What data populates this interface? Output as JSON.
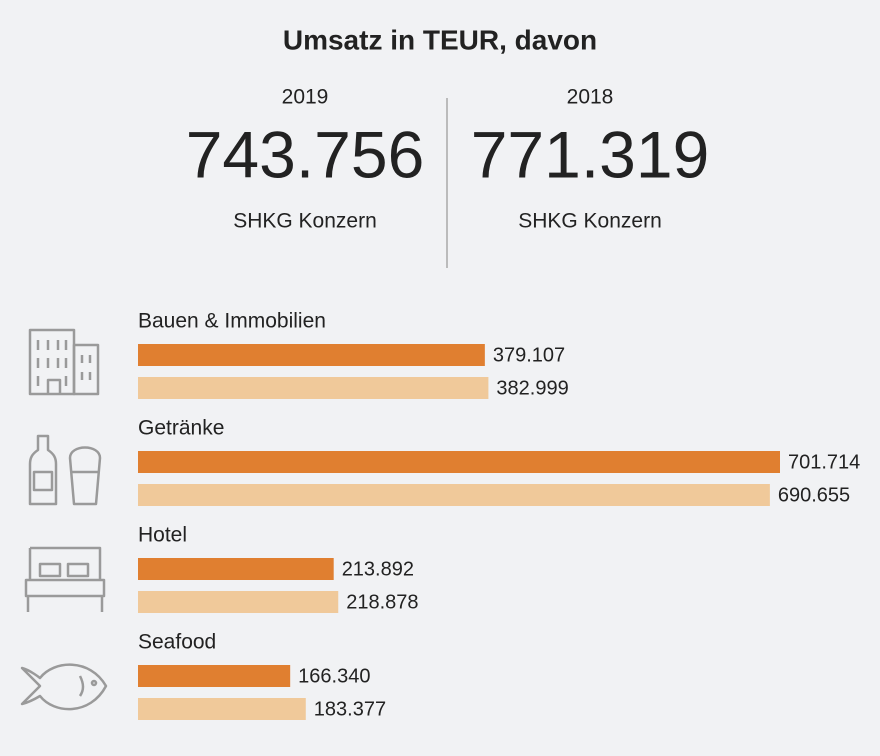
{
  "chart_data": {
    "type": "hbar",
    "title": "Umsatz in TEUR, davon",
    "categories": [
      "Bauen & Immobilien",
      "Getränke",
      "Hotel",
      "Seafood"
    ],
    "series": [
      {
        "name": "2019",
        "color": "#e07f30",
        "total": 743756,
        "total_label": "743.756",
        "caption": "SHKG Konzern",
        "values": [
          379107,
          701714,
          213892,
          166340
        ],
        "value_labels": [
          "379.107",
          "701.714",
          "213.892",
          "166.340"
        ]
      },
      {
        "name": "2018",
        "color": "#f0c99a",
        "total": 771319,
        "total_label": "771.319",
        "caption": "SHKG Konzern",
        "values": [
          382999,
          690655,
          218878,
          183377
        ],
        "value_labels": [
          "382.999",
          "690.655",
          "218.878",
          "183.377"
        ]
      }
    ]
  }
}
